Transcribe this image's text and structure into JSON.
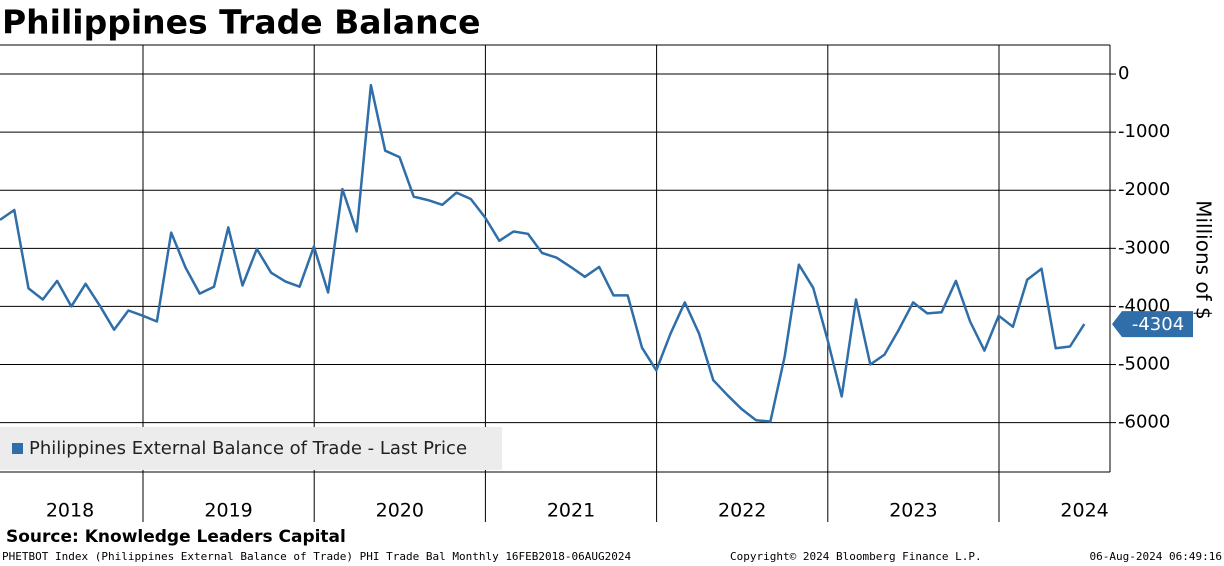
{
  "chart_data": {
    "type": "line",
    "title": "Philippines Trade Balance",
    "y_axis_label": "Millions of $",
    "source": "Source: Knowledge Leaders Capital",
    "footer_left": "PHETBOT Index (Philippines External Balance of Trade) PHI Trade Bal  Monthly 16FEB2018-06AUG2024",
    "footer_center": "Copyright© 2024 Bloomberg Finance L.P.",
    "footer_right": "06-Aug-2024 06:49:16",
    "year_labels": [
      "2018",
      "2019",
      "2020",
      "2021",
      "2022",
      "2023",
      "2024"
    ],
    "ylim": [
      -6850,
      500
    ],
    "yticks": [
      0,
      -1000,
      -2000,
      -3000,
      -4000,
      -5000,
      -6000
    ],
    "grid": true,
    "series": [
      {
        "name": "Philippines External Balance of Trade - Last Price",
        "color": "#2f6ea8",
        "values": [
          -2510,
          -2340,
          -3690,
          -3880,
          -3560,
          -4000,
          -3610,
          -3990,
          -4400,
          -4070,
          -4160,
          -4260,
          -2730,
          -3330,
          -3780,
          -3660,
          -2640,
          -3640,
          -3010,
          -3420,
          -3570,
          -3660,
          -2970,
          -3760,
          -1980,
          -2710,
          -190,
          -1320,
          -1430,
          -2110,
          -2170,
          -2250,
          -2040,
          -2150,
          -2470,
          -2870,
          -2710,
          -2750,
          -3080,
          -3160,
          -3320,
          -3490,
          -3320,
          -3810,
          -3810,
          -4710,
          -5100,
          -4470,
          -3930,
          -4470,
          -5270,
          -5530,
          -5770,
          -5960,
          -5980,
          -4860,
          -3280,
          -3680,
          -4570,
          -5550,
          -3880,
          -5000,
          -4830,
          -4400,
          -3930,
          -4120,
          -4100,
          -3560,
          -4260,
          -4760,
          -4160,
          -4350,
          -3540,
          -3350,
          -4720,
          -4690,
          -4304
        ]
      }
    ]
  }
}
